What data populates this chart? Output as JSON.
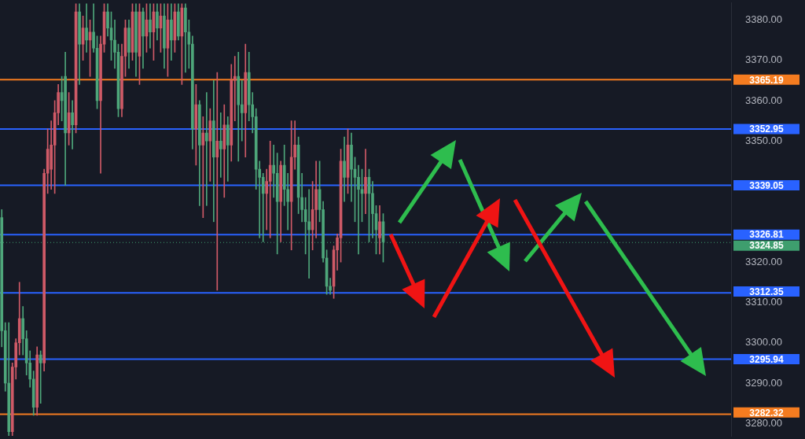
{
  "chart_data": {
    "type": "candlestick",
    "categories": [
      null,
      null,
      null,
      null,
      null,
      null,
      null,
      null,
      null,
      null,
      null,
      null,
      null,
      null,
      null,
      null,
      null,
      null,
      null,
      null,
      null,
      null,
      null,
      null,
      null,
      null,
      null,
      null,
      null,
      null,
      null,
      null,
      null,
      null,
      null,
      null,
      null,
      null,
      null,
      null,
      null,
      null,
      null,
      null,
      null,
      null,
      null,
      null,
      null,
      null,
      null,
      null,
      null,
      null,
      null,
      null,
      null,
      null,
      null,
      null,
      null,
      null,
      null,
      null,
      null,
      null,
      null,
      null,
      null,
      null,
      null,
      null,
      null,
      null,
      null,
      null,
      null,
      null,
      null,
      null,
      null,
      null,
      null,
      null,
      null,
      null,
      null,
      null,
      null,
      null,
      null,
      null,
      null,
      null,
      null,
      null,
      null,
      null,
      null,
      null,
      null,
      null,
      null,
      null,
      null,
      null,
      null,
      null,
      null,
      null,
      null,
      null,
      null,
      null,
      null,
      null,
      null,
      null,
      null,
      null,
      null,
      null,
      null,
      null,
      null,
      null,
      null,
      null,
      null,
      null,
      null,
      null,
      null,
      null,
      null,
      null,
      null,
      null,
      null,
      null,
      null,
      null,
      null,
      null,
      null,
      null,
      null,
      null,
      null,
      null,
      null,
      null,
      null,
      null,
      null,
      null,
      null,
      null,
      null,
      null,
      null,
      null,
      null,
      null,
      null,
      null,
      null,
      null,
      null,
      null,
      null,
      null,
      null,
      null,
      null,
      null,
      null,
      null,
      null,
      null,
      null,
      null,
      null,
      null,
      null,
      null,
      null,
      null,
      null,
      null,
      null,
      null,
      null,
      null,
      null,
      null,
      null,
      null,
      null,
      null,
      null,
      null,
      null,
      null,
      null,
      null,
      null
    ],
    "ohlc": [
      [
        3331,
        3333,
        3299,
        3303
      ],
      [
        3303,
        3305,
        3288,
        3290
      ],
      [
        3290,
        3305,
        3277,
        3278
      ],
      [
        3278,
        3295,
        3277,
        3294
      ],
      [
        3294,
        3301,
        3291,
        3300
      ],
      [
        3300,
        3315,
        3297,
        3306
      ],
      [
        3306,
        3309,
        3297,
        3301
      ],
      [
        3301,
        3303,
        3292,
        3295
      ],
      [
        3295,
        3298,
        3289,
        3291
      ],
      [
        3291,
        3293,
        3282,
        3284
      ],
      [
        3284,
        3299,
        3282,
        3297
      ],
      [
        3297,
        3298,
        3285,
        3295
      ],
      [
        3295,
        3343,
        3293,
        3342
      ],
      [
        3342,
        3353,
        3337,
        3348
      ],
      [
        3343,
        3355,
        3338,
        3349
      ],
      [
        3349,
        3360,
        3337,
        3357
      ],
      [
        3357,
        3364,
        3354,
        3362
      ],
      [
        3362,
        3366,
        3355,
        3360
      ],
      [
        3366,
        3372,
        3339,
        3352
      ],
      [
        3352,
        3362,
        3349,
        3357
      ],
      [
        3357,
        3360,
        3348,
        3354
      ],
      [
        3354,
        3384,
        3352,
        3382
      ],
      [
        3382,
        3384,
        3364,
        3374
      ],
      [
        3374,
        3381,
        3370,
        3378
      ],
      [
        3378,
        3384,
        3372,
        3375
      ],
      [
        3375,
        3380,
        3366,
        3377
      ],
      [
        3377,
        3384,
        3372,
        3373
      ],
      [
        3373,
        3376,
        3358,
        3360
      ],
      [
        3360,
        3376,
        3342,
        3374
      ],
      [
        3374,
        3384,
        3372,
        3382
      ],
      [
        3382,
        3384,
        3376,
        3378
      ],
      [
        3378,
        3382,
        3370,
        3375
      ],
      [
        3375,
        3380,
        3368,
        3372
      ],
      [
        3372,
        3374,
        3356,
        3358
      ],
      [
        3358,
        3374,
        3356,
        3371
      ],
      [
        3371,
        3380,
        3366,
        3378
      ],
      [
        3378,
        3380,
        3368,
        3372
      ],
      [
        3372,
        3384,
        3370,
        3382
      ],
      [
        3382,
        3384,
        3366,
        3372
      ],
      [
        3371,
        3384,
        3364,
        3382
      ],
      [
        3382,
        3383,
        3368,
        3376
      ],
      [
        3376,
        3384,
        3372,
        3380
      ],
      [
        3380,
        3384,
        3373,
        3377
      ],
      [
        3377,
        3384,
        3370,
        3382
      ],
      [
        3382,
        3384,
        3375,
        3378
      ],
      [
        3378,
        3384,
        3372,
        3381
      ],
      [
        3381,
        3384,
        3368,
        3373
      ],
      [
        3373,
        3384,
        3366,
        3380
      ],
      [
        3380,
        3384,
        3370,
        3375
      ],
      [
        3375,
        3384,
        3372,
        3382
      ],
      [
        3382,
        3384,
        3375,
        3376
      ],
      [
        3376,
        3384,
        3364,
        3383
      ],
      [
        3383,
        3384,
        3367,
        3377
      ],
      [
        3377,
        3380,
        3368,
        3374
      ],
      [
        3374,
        3376,
        3348,
        3353
      ],
      [
        3353,
        3364,
        3344,
        3359
      ],
      [
        3359,
        3360,
        3334,
        3349
      ],
      [
        3349,
        3356,
        3331,
        3352
      ],
      [
        3352,
        3362,
        3334,
        3350
      ],
      [
        3350,
        3358,
        3340,
        3355
      ],
      [
        3355,
        3365,
        3330,
        3346
      ],
      [
        3346,
        3367,
        3313,
        3350
      ],
      [
        3350,
        3357,
        3341,
        3348
      ],
      [
        3348,
        3359,
        3336,
        3354
      ],
      [
        3354,
        3356,
        3340,
        3349
      ],
      [
        3349,
        3369,
        3345,
        3365
      ],
      [
        3365,
        3371,
        3355,
        3366
      ],
      [
        3366,
        3372,
        3345,
        3359
      ],
      [
        3359,
        3365,
        3350,
        3357
      ],
      [
        3357,
        3374,
        3346,
        3367
      ],
      [
        3367,
        3372,
        3355,
        3359
      ],
      [
        3359,
        3362,
        3352,
        3356
      ],
      [
        3356,
        3358,
        3338,
        3343
      ],
      [
        3343,
        3345,
        3326,
        3341
      ],
      [
        3341,
        3342,
        3325,
        3337
      ],
      [
        3337,
        3343,
        3328,
        3340
      ],
      [
        3340,
        3350,
        3326,
        3344
      ],
      [
        3344,
        3349,
        3336,
        3342
      ],
      [
        3342,
        3347,
        3322,
        3335
      ],
      [
        3335,
        3345,
        3325,
        3344
      ],
      [
        3344,
        3349,
        3334,
        3338
      ],
      [
        3338,
        3342,
        3328,
        3335
      ],
      [
        3335,
        3355,
        3323,
        3346
      ],
      [
        3346,
        3355,
        3343,
        3349
      ],
      [
        3349,
        3351,
        3332,
        3336
      ],
      [
        3336,
        3342,
        3330,
        3333
      ],
      [
        3333,
        3336,
        3322,
        3330
      ],
      [
        3330,
        3338,
        3316,
        3328
      ],
      [
        3328,
        3340,
        3323,
        3333
      ],
      [
        3333,
        3345,
        3326,
        3338
      ],
      [
        3338,
        3345,
        3330,
        3333
      ],
      [
        3333,
        3335,
        3320,
        3321
      ],
      [
        3321,
        3323,
        3312,
        3314
      ],
      [
        3314,
        3316,
        3312,
        3313
      ],
      [
        3314,
        3324,
        3311,
        3323
      ],
      [
        3323,
        3327,
        3318,
        3326
      ],
      [
        3326,
        3348,
        3320,
        3345
      ],
      [
        3345,
        3351,
        3335,
        3341
      ],
      [
        3341,
        3353,
        3337,
        3349
      ],
      [
        3349,
        3352,
        3335,
        3343
      ],
      [
        3343,
        3346,
        3330,
        3341
      ],
      [
        3341,
        3344,
        3322,
        3338
      ],
      [
        3338,
        3343,
        3330,
        3337
      ],
      [
        3337,
        3348,
        3332,
        3341
      ],
      [
        3341,
        3343,
        3325,
        3337
      ],
      [
        3337,
        3340,
        3326,
        3332
      ],
      [
        3332,
        3334,
        3322,
        3328
      ],
      [
        3326,
        3334,
        3322,
        3330
      ],
      [
        3330,
        3332,
        3320,
        3325
      ],
      null,
      null,
      null,
      null,
      null,
      null,
      null,
      null,
      null,
      null,
      null,
      null,
      null,
      null,
      null,
      null,
      null,
      null,
      null,
      null,
      null,
      null,
      null,
      null,
      null,
      null,
      null,
      null,
      null,
      null,
      null,
      null,
      null,
      null,
      null,
      null,
      null,
      null,
      null,
      null,
      null,
      null,
      null,
      null,
      null,
      null,
      null,
      null,
      null,
      null,
      null,
      null,
      null,
      null,
      null,
      null,
      null,
      null,
      null,
      null,
      null,
      null,
      null,
      null,
      null,
      null,
      null,
      null,
      null,
      null,
      null,
      null,
      null,
      null,
      null,
      null,
      null,
      null,
      null,
      null,
      null,
      null,
      null,
      null,
      null,
      null,
      null,
      null,
      null,
      null,
      null,
      null,
      null,
      null,
      null,
      null,
      null,
      null
    ],
    "colors": [
      "#4ea67a",
      "#4ea67a",
      "#4ea67a",
      "#cf5a67",
      "#cf5a67",
      "#cf5a67",
      "#4ea67a",
      "#4ea67a",
      "#4ea67a",
      "#4ea67a",
      "#cf5a67",
      "#4ea67a",
      "#cf5a67",
      "#cf5a67",
      "#cf5a67",
      "#cf5a67",
      "#cf5a67",
      "#4ea67a",
      "#4ea67a",
      "#cf5a67",
      "#4ea67a",
      "#cf5a67",
      "#4ea67a",
      "#cf5a67",
      "#4ea67a",
      "#cf5a67",
      "#4ea67a",
      "#4ea67a",
      "#cf5a67",
      "#cf5a67",
      "#4ea67a",
      "#4ea67a",
      "#4ea67a",
      "#4ea67a",
      "#cf5a67",
      "#cf5a67",
      "#4ea67a",
      "#cf5a67",
      "#4ea67a",
      "#cf5a67",
      "#4ea67a",
      "#cf5a67",
      "#4ea67a",
      "#cf5a67",
      "#4ea67a",
      "#cf5a67",
      "#4ea67a",
      "#cf5a67",
      "#4ea67a",
      "#cf5a67",
      "#4ea67a",
      "#cf5a67",
      "#4ea67a",
      "#4ea67a",
      "#4ea67a",
      "#cf5a67",
      "#4ea67a",
      "#cf5a67",
      "#4ea67a",
      "#cf5a67",
      "#4ea67a",
      "#cf5a67",
      "#4ea67a",
      "#cf5a67",
      "#4ea67a",
      "#cf5a67",
      "#cf5a67",
      "#4ea67a",
      "#4ea67a",
      "#cf5a67",
      "#4ea67a",
      "#4ea67a",
      "#4ea67a",
      "#4ea67a",
      "#4ea67a",
      "#cf5a67",
      "#cf5a67",
      "#4ea67a",
      "#4ea67a",
      "#cf5a67",
      "#4ea67a",
      "#4ea67a",
      "#cf5a67",
      "#cf5a67",
      "#4ea67a",
      "#4ea67a",
      "#4ea67a",
      "#4ea67a",
      "#cf5a67",
      "#cf5a67",
      "#4ea67a",
      "#4ea67a",
      "#4ea67a",
      "#4ea67a",
      "#cf5a67",
      "#cf5a67",
      "#cf5a67",
      "#4ea67a",
      "#cf5a67",
      "#4ea67a",
      "#4ea67a",
      "#4ea67a",
      "#4ea67a",
      "#cf5a67",
      "#4ea67a",
      "#4ea67a",
      "#4ea67a",
      "#cf5a67",
      "#4ea67a",
      null,
      null,
      null,
      null,
      null,
      null,
      null,
      null,
      null,
      null,
      null,
      null,
      null,
      null,
      null,
      null,
      null,
      null,
      null,
      null,
      null,
      null,
      null,
      null,
      null,
      null,
      null,
      null,
      null,
      null,
      null,
      null,
      null,
      null,
      null,
      null,
      null,
      null,
      null,
      null,
      null,
      null,
      null,
      null,
      null,
      null,
      null,
      null,
      null,
      null,
      null,
      null,
      null,
      null,
      null,
      null,
      null,
      null,
      null,
      null,
      null,
      null,
      null,
      null,
      null,
      null,
      null,
      null,
      null,
      null,
      null,
      null,
      null,
      null,
      null,
      null,
      null,
      null,
      null,
      null,
      null,
      null,
      null,
      null,
      null,
      null,
      null,
      null,
      null,
      null,
      null,
      null,
      null,
      null,
      null,
      null,
      null,
      null
    ],
    "ylim": [
      3276.9,
      3384.2
    ],
    "yticks": [
      {
        "value": 3280,
        "label": "3280.00"
      },
      {
        "value": 3290,
        "label": "3290.00"
      },
      {
        "value": 3300,
        "label": "3300.00"
      },
      {
        "value": 3310,
        "label": "3310.00"
      },
      {
        "value": 3320,
        "label": "3320.00"
      },
      {
        "value": 3350,
        "label": "3350.00"
      },
      {
        "value": 3360,
        "label": "3360.00"
      },
      {
        "value": 3370,
        "label": "3370.00"
      },
      {
        "value": 3380,
        "label": "3380.00"
      }
    ],
    "tick_labels": "y",
    "ref_lines": [
      {
        "axis": "y",
        "value": 3365.19,
        "label": "3365.19",
        "color": "#f57c20"
      },
      {
        "axis": "y",
        "value": 3352.95,
        "label": "3352.95",
        "color": "#2962ff"
      },
      {
        "axis": "y",
        "value": 3339.05,
        "label": "3339.05",
        "color": "#2962ff"
      },
      {
        "axis": "y",
        "value": 3326.81,
        "label": "3326.81",
        "color": "#2962ff"
      },
      {
        "axis": "y",
        "value": 3324.85,
        "label": "3324.85",
        "color": "#3e9e6e",
        "line_style": "dotted"
      },
      {
        "axis": "y",
        "value": 3312.35,
        "label": "3312.35",
        "color": "#2962ff"
      },
      {
        "axis": "y",
        "value": 3295.94,
        "label": "3295.94",
        "color": "#2962ff"
      },
      {
        "axis": "y",
        "value": 3282.32,
        "label": "3282.32",
        "color": "#f57c20"
      }
    ]
  }
}
